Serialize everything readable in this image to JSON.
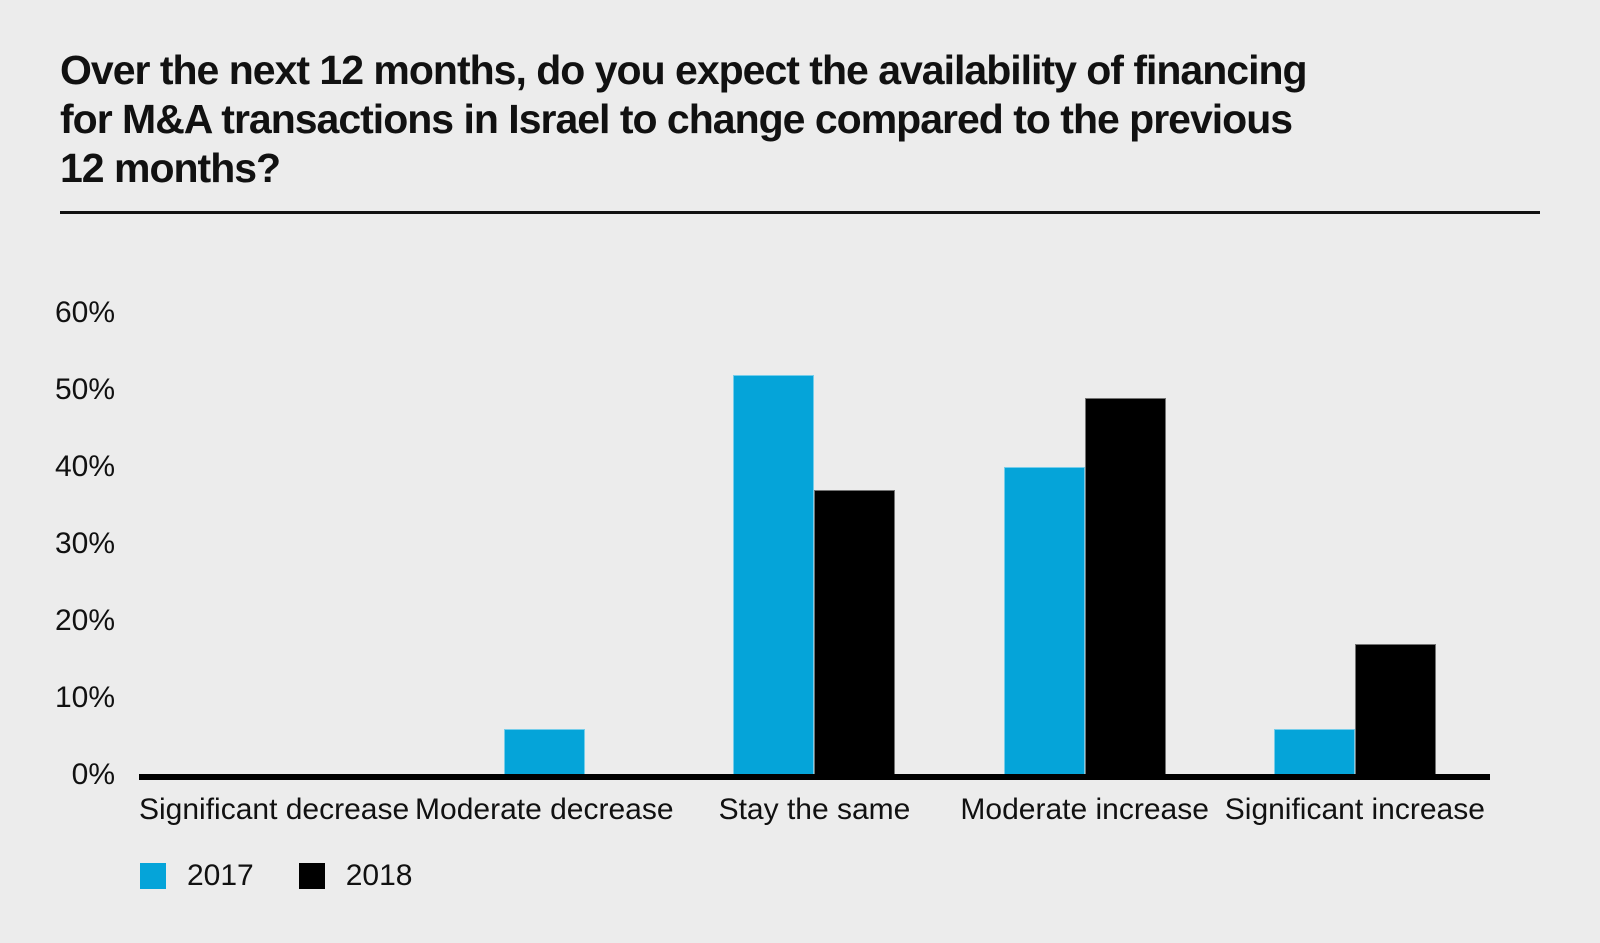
{
  "chart_data": {
    "type": "bar",
    "title": "Over the next 12 months, do you expect the availability of financing for M&A transactions in Israel to change compared to the previous 12 months?",
    "title_lines": [
      "Over the next 12 months, do you expect the availability of financing",
      "for M&A transactions in Israel to change compared to the previous",
      "12 months?"
    ],
    "categories": [
      "Significant decrease",
      "Moderate decrease",
      "Stay the same",
      "Moderate increase",
      "Significant increase"
    ],
    "series": [
      {
        "name": "2017",
        "color": "#05a4d9",
        "values": [
          0,
          6,
          52,
          40,
          6
        ]
      },
      {
        "name": "2018",
        "color": "#000000",
        "values": [
          0,
          0,
          37,
          49,
          17
        ]
      }
    ],
    "xlabel": "",
    "ylabel": "",
    "ylim": [
      0,
      60
    ],
    "ytick_values": [
      0,
      10,
      20,
      30,
      40,
      50,
      60
    ],
    "ytick_labels": [
      "0%",
      "10%",
      "20%",
      "30%",
      "40%",
      "50%",
      "60%"
    ],
    "grid": false,
    "legend_position": "bottom-left"
  },
  "colors": {
    "background": "#ececec",
    "text": "#111111",
    "axis": "#000000"
  }
}
